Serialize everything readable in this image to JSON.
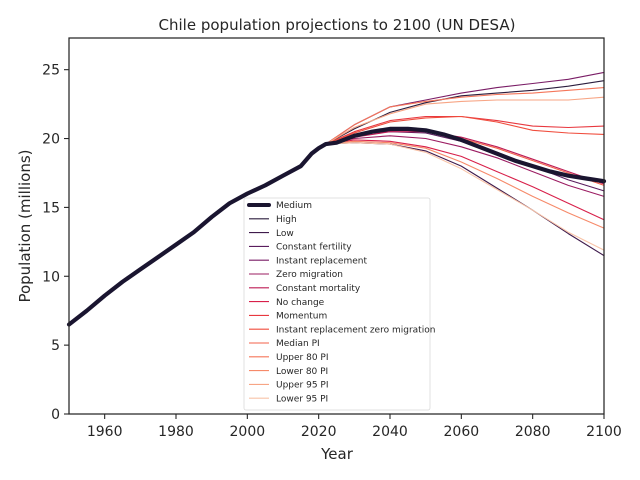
{
  "chart_data": {
    "type": "line",
    "title": "Chile population projections to 2100 (UN DESA)",
    "xlabel": "Year",
    "ylabel": "Population (millions)",
    "xlim": [
      1950,
      2100
    ],
    "ylim": [
      0,
      27.3
    ],
    "xticks": [
      1960,
      1980,
      2000,
      2020,
      2040,
      2060,
      2080,
      2100
    ],
    "yticks": [
      0,
      5,
      10,
      15,
      20,
      25
    ],
    "grid": false,
    "legend_position": "lower-center",
    "series": [
      {
        "name": "Medium",
        "color": "#1a1530",
        "width": 4.2,
        "x": [
          1950,
          1955,
          1960,
          1965,
          1970,
          1975,
          1980,
          1985,
          1990,
          1995,
          2000,
          2005,
          2010,
          2015,
          2018,
          2020,
          2022,
          2025,
          2030,
          2035,
          2040,
          2045,
          2050,
          2055,
          2060,
          2065,
          2070,
          2075,
          2080,
          2085,
          2090,
          2095,
          2100
        ],
        "y": [
          6.5,
          7.5,
          8.6,
          9.6,
          10.5,
          11.4,
          12.3,
          13.2,
          14.3,
          15.3,
          16.0,
          16.6,
          17.3,
          18.0,
          18.9,
          19.3,
          19.6,
          19.7,
          20.2,
          20.5,
          20.7,
          20.7,
          20.6,
          20.3,
          19.9,
          19.4,
          18.9,
          18.4,
          18.0,
          17.6,
          17.3,
          17.1,
          16.9
        ]
      },
      {
        "name": "High",
        "color": "#2b1d3d",
        "width": 1.1,
        "x": [
          2022,
          2030,
          2040,
          2050,
          2060,
          2070,
          2080,
          2090,
          2100
        ],
        "y": [
          19.6,
          20.7,
          21.9,
          22.6,
          23.1,
          23.3,
          23.5,
          23.8,
          24.2
        ]
      },
      {
        "name": "Low",
        "color": "#3f1b4c",
        "width": 1.1,
        "x": [
          2022,
          2030,
          2040,
          2050,
          2060,
          2070,
          2080,
          2090,
          2100
        ],
        "y": [
          19.6,
          19.7,
          19.6,
          19.1,
          18.0,
          16.4,
          14.8,
          13.1,
          11.5
        ]
      },
      {
        "name": "Constant fertility",
        "color": "#5a1d5e",
        "width": 1.1,
        "x": [
          2022,
          2030,
          2040,
          2050,
          2060,
          2070,
          2080,
          2090,
          2100
        ],
        "y": [
          19.6,
          20.3,
          20.5,
          20.4,
          19.8,
          19.0,
          18.0,
          17.0,
          16.2
        ]
      },
      {
        "name": "Instant replacement",
        "color": "#7a1d66",
        "width": 1.1,
        "x": [
          2022,
          2030,
          2040,
          2050,
          2060,
          2070,
          2080,
          2090,
          2100
        ],
        "y": [
          19.6,
          21.0,
          22.3,
          22.8,
          23.3,
          23.7,
          24.0,
          24.3,
          24.8
        ]
      },
      {
        "name": "Zero migration",
        "color": "#9b1c62",
        "width": 1.1,
        "x": [
          2022,
          2030,
          2040,
          2050,
          2060,
          2070,
          2080,
          2090,
          2100
        ],
        "y": [
          19.6,
          20.0,
          20.2,
          20.0,
          19.4,
          18.6,
          17.6,
          16.6,
          15.8
        ]
      },
      {
        "name": "Constant mortality",
        "color": "#bd1b55",
        "width": 1.1,
        "x": [
          2022,
          2030,
          2040,
          2050,
          2060,
          2070,
          2080,
          2090,
          2100
        ],
        "y": [
          19.6,
          20.1,
          20.5,
          20.5,
          20.1,
          19.4,
          18.5,
          17.6,
          16.7
        ]
      },
      {
        "name": "No change",
        "color": "#d8204a",
        "width": 1.1,
        "x": [
          2022,
          2030,
          2040,
          2050,
          2060,
          2070,
          2080,
          2090,
          2100
        ],
        "y": [
          19.6,
          19.9,
          19.8,
          19.4,
          18.7,
          17.6,
          16.5,
          15.3,
          14.1
        ]
      },
      {
        "name": "Momentum",
        "color": "#e8383f",
        "width": 1.1,
        "x": [
          2022,
          2030,
          2040,
          2050,
          2060,
          2070,
          2080,
          2090,
          2100
        ],
        "y": [
          19.6,
          20.5,
          21.3,
          21.6,
          21.6,
          21.3,
          20.9,
          20.8,
          20.9
        ]
      },
      {
        "name": "Instant replacement zero migration",
        "color": "#f04d3d",
        "width": 1.1,
        "x": [
          2022,
          2030,
          2040,
          2050,
          2060,
          2070,
          2080,
          2090,
          2100
        ],
        "y": [
          19.6,
          20.4,
          21.2,
          21.5,
          21.6,
          21.2,
          20.6,
          20.4,
          20.3
        ]
      },
      {
        "name": "Median PI",
        "color": "#f3604a",
        "width": 1.1,
        "x": [
          2022,
          2030,
          2040,
          2050,
          2060,
          2070,
          2080,
          2090,
          2100
        ],
        "y": [
          19.6,
          20.2,
          20.6,
          20.6,
          20.0,
          19.3,
          18.4,
          17.5,
          16.6
        ]
      },
      {
        "name": "Upper 80 PI",
        "color": "#f5765a",
        "width": 1.1,
        "x": [
          2022,
          2030,
          2040,
          2050,
          2060,
          2070,
          2080,
          2090,
          2100
        ],
        "y": [
          19.6,
          21.0,
          22.3,
          22.7,
          23.0,
          23.2,
          23.3,
          23.5,
          23.7
        ]
      },
      {
        "name": "Lower 80 PI",
        "color": "#f68a6a",
        "width": 1.1,
        "x": [
          2022,
          2030,
          2040,
          2050,
          2060,
          2070,
          2080,
          2090,
          2100
        ],
        "y": [
          19.6,
          19.8,
          19.7,
          19.3,
          18.3,
          17.1,
          15.8,
          14.6,
          13.5
        ]
      },
      {
        "name": "Upper 95 PI",
        "color": "#f7a585",
        "width": 1.1,
        "x": [
          2022,
          2030,
          2040,
          2050,
          2060,
          2070,
          2080,
          2090,
          2100
        ],
        "y": [
          19.6,
          20.8,
          21.8,
          22.5,
          22.7,
          22.8,
          22.8,
          22.8,
          23.0
        ]
      },
      {
        "name": "Lower 95 PI",
        "color": "#f9c4a8",
        "width": 1.1,
        "x": [
          2022,
          2030,
          2040,
          2050,
          2060,
          2070,
          2080,
          2090,
          2100
        ],
        "y": [
          19.6,
          19.7,
          19.6,
          19.0,
          17.8,
          16.3,
          14.8,
          13.2,
          11.9
        ]
      }
    ]
  }
}
